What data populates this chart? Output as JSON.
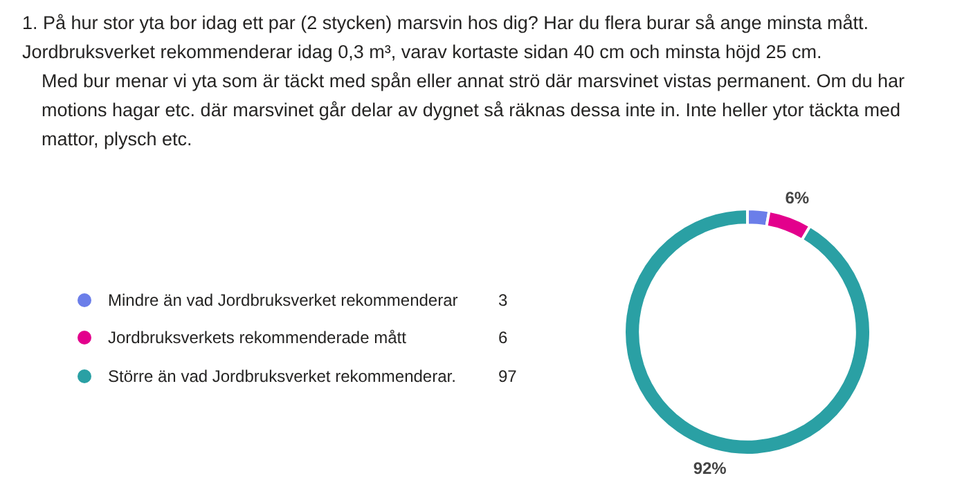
{
  "chart_data": {
    "type": "donut",
    "title": "1. På hur stor yta bor idag ett par (2 stycken) marsvin hos dig? Har du flera burar så ange minsta mått. Jordbruksverket rekommenderar idag 0,3 m³, varav kortaste sidan 40 cm och minsta höjd 25 cm.",
    "subtitle": "Med bur menar vi yta som är täckt med spån eller annat strö där marsvinet vistas permanent. Om du har motions hagar etc. där marsvinet går delar av dygnet så räknas dessa inte in.  Inte heller ytor täckta med mattor, plysch etc.",
    "categories": [
      "Mindre än vad Jordbruksverket rekommenderar",
      "Jordbruksverkets rekommenderade mått",
      "Större än vad Jordbruksverket rekommenderar."
    ],
    "values": [
      3,
      6,
      97
    ],
    "colors": [
      "#6b7ee9",
      "#e3008c",
      "#2aa0a4"
    ],
    "value_labels": [
      "3",
      "6",
      "97"
    ],
    "annotations": [
      {
        "text": "6%",
        "x": "Jordbruksverkets rekommenderade mått"
      },
      {
        "text": "92%",
        "x": "Större än vad Jordbruksverket rekommenderar."
      }
    ],
    "legend": "left"
  }
}
